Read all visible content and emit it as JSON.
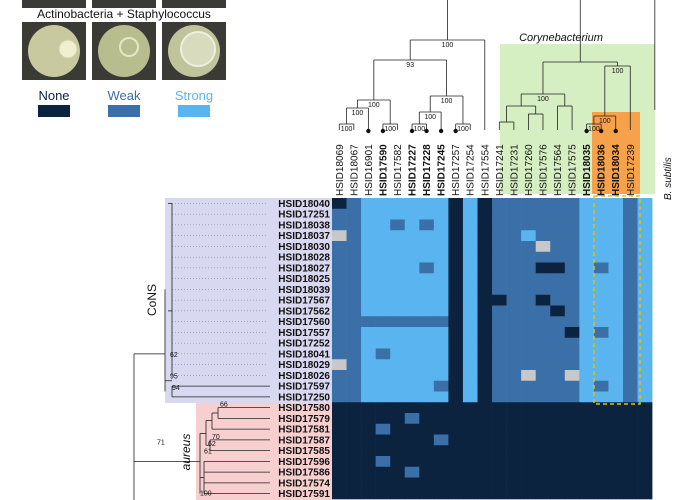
{
  "panel_title": "Actinobacteria + Staphylococcus",
  "legend": [
    {
      "label": "None",
      "color": "#0c2340"
    },
    {
      "label": "Weak",
      "color": "#3a6fa8"
    },
    {
      "label": "Strong",
      "color": "#5ab4f0"
    }
  ],
  "clade_labels": {
    "corynebacterium": "Corynebacterium",
    "cons": "CoNS",
    "aureus": "aureus",
    "bsubtilis": "B. subtilis"
  },
  "bootstrap": [
    "100",
    "93",
    "100",
    "100",
    "100",
    "100",
    "100",
    "100",
    "100",
    "100",
    "100",
    "100",
    "100",
    "100",
    "100",
    "62",
    "95",
    "94",
    "66",
    "62",
    "70",
    "62",
    "61",
    "71",
    "100"
  ],
  "chart_data": {
    "type": "heatmap",
    "value_key": {
      "0": "None",
      "1": "Weak",
      "2": "Strong",
      "3": "Not tested"
    },
    "columns": [
      "HSID18069",
      "HSID18067",
      "HSID16901",
      "HSID17590",
      "HSID17582",
      "HSID17227",
      "HSID17228",
      "HSID17245",
      "HSID17257",
      "HSID17254",
      "HSID17554",
      "HSID17241",
      "HSID17231",
      "HSID17260",
      "HSID17576",
      "HSID17564",
      "HSID17575",
      "HSID18035",
      "HSID18036",
      "HSID18034",
      "HSID17239",
      "B. subtilis"
    ],
    "bold_columns": [
      "HSID17590",
      "HSID17227",
      "HSID17228",
      "HSID17245",
      "HSID18035",
      "HSID18036",
      "HSID18034"
    ],
    "rows": [
      "HSID18040",
      "HSID17251",
      "HSID18038",
      "HSID18037",
      "HSID18030",
      "HSID18028",
      "HSID18027",
      "HSID18025",
      "HSID18039",
      "HSID17567",
      "HSID17562",
      "HSID17560",
      "HSID17557",
      "HSID17252",
      "HSID18041",
      "HSID18029",
      "HSID18026",
      "HSID17597",
      "HSID17250",
      "HSID17580",
      "HSID17579",
      "HSID17581",
      "HSID17587",
      "HSID17585",
      "HSID17596",
      "HSID17586",
      "HSID17574",
      "HSID17591"
    ],
    "values": [
      [
        0,
        1,
        2,
        2,
        2,
        2,
        2,
        2,
        0,
        2,
        0,
        1,
        1,
        1,
        1,
        1,
        1,
        2,
        2,
        2,
        1,
        2
      ],
      [
        1,
        1,
        2,
        2,
        2,
        2,
        2,
        2,
        0,
        2,
        0,
        1,
        1,
        1,
        1,
        1,
        1,
        2,
        2,
        2,
        1,
        2
      ],
      [
        1,
        1,
        2,
        2,
        1,
        2,
        1,
        2,
        0,
        2,
        0,
        1,
        1,
        1,
        1,
        1,
        1,
        2,
        2,
        2,
        1,
        2
      ],
      [
        3,
        1,
        2,
        2,
        2,
        2,
        2,
        2,
        0,
        2,
        0,
        1,
        1,
        2,
        1,
        1,
        1,
        2,
        2,
        2,
        1,
        2
      ],
      [
        1,
        1,
        2,
        2,
        2,
        2,
        2,
        2,
        0,
        2,
        0,
        1,
        1,
        1,
        3,
        1,
        1,
        2,
        2,
        2,
        1,
        2
      ],
      [
        1,
        1,
        2,
        2,
        2,
        2,
        2,
        2,
        0,
        2,
        0,
        1,
        1,
        1,
        1,
        1,
        1,
        2,
        2,
        2,
        1,
        2
      ],
      [
        1,
        1,
        2,
        2,
        2,
        2,
        1,
        2,
        0,
        2,
        0,
        1,
        1,
        1,
        0,
        0,
        1,
        2,
        1,
        2,
        1,
        2
      ],
      [
        1,
        1,
        2,
        2,
        2,
        2,
        2,
        2,
        0,
        2,
        0,
        1,
        1,
        1,
        1,
        1,
        1,
        2,
        2,
        2,
        1,
        2
      ],
      [
        1,
        1,
        2,
        2,
        2,
        2,
        2,
        2,
        0,
        2,
        0,
        1,
        1,
        1,
        1,
        1,
        1,
        2,
        2,
        2,
        1,
        2
      ],
      [
        1,
        1,
        2,
        2,
        2,
        2,
        2,
        2,
        0,
        2,
        0,
        0,
        1,
        1,
        0,
        1,
        1,
        2,
        2,
        2,
        1,
        2
      ],
      [
        1,
        1,
        2,
        2,
        2,
        2,
        2,
        2,
        0,
        2,
        0,
        1,
        1,
        1,
        1,
        0,
        1,
        2,
        2,
        2,
        1,
        2
      ],
      [
        1,
        1,
        1,
        1,
        1,
        1,
        1,
        1,
        0,
        2,
        0,
        1,
        1,
        1,
        1,
        1,
        1,
        2,
        2,
        2,
        1,
        2
      ],
      [
        1,
        1,
        2,
        2,
        2,
        2,
        2,
        2,
        0,
        2,
        0,
        1,
        1,
        1,
        1,
        1,
        0,
        2,
        1,
        2,
        1,
        2
      ],
      [
        1,
        1,
        2,
        2,
        2,
        2,
        2,
        2,
        0,
        2,
        0,
        1,
        1,
        1,
        1,
        1,
        1,
        2,
        2,
        2,
        1,
        2
      ],
      [
        1,
        1,
        2,
        1,
        2,
        2,
        2,
        2,
        0,
        2,
        0,
        1,
        1,
        1,
        1,
        1,
        1,
        2,
        2,
        2,
        1,
        2
      ],
      [
        3,
        1,
        2,
        2,
        2,
        2,
        2,
        2,
        0,
        2,
        0,
        1,
        1,
        1,
        1,
        1,
        1,
        2,
        2,
        2,
        1,
        2
      ],
      [
        1,
        1,
        2,
        2,
        2,
        2,
        2,
        2,
        0,
        2,
        0,
        1,
        1,
        3,
        1,
        1,
        3,
        2,
        2,
        2,
        1,
        2
      ],
      [
        1,
        1,
        2,
        2,
        2,
        2,
        2,
        1,
        0,
        2,
        0,
        1,
        1,
        1,
        1,
        1,
        1,
        2,
        1,
        2,
        1,
        2
      ],
      [
        1,
        1,
        2,
        2,
        2,
        2,
        2,
        2,
        0,
        2,
        0,
        1,
        1,
        1,
        1,
        1,
        1,
        2,
        2,
        2,
        1,
        2
      ],
      [
        0,
        0,
        0,
        0,
        0,
        0,
        0,
        0,
        0,
        0,
        0,
        0,
        0,
        0,
        0,
        0,
        0,
        0,
        0,
        0,
        0,
        0
      ],
      [
        0,
        0,
        0,
        0,
        0,
        1,
        0,
        0,
        0,
        0,
        0,
        0,
        0,
        0,
        0,
        0,
        0,
        0,
        0,
        0,
        0,
        0
      ],
      [
        0,
        0,
        0,
        1,
        0,
        0,
        0,
        0,
        0,
        0,
        0,
        0,
        0,
        0,
        0,
        0,
        0,
        0,
        0,
        0,
        0,
        0
      ],
      [
        0,
        0,
        0,
        0,
        0,
        0,
        0,
        1,
        0,
        0,
        0,
        0,
        0,
        0,
        0,
        0,
        0,
        0,
        0,
        0,
        0,
        0
      ],
      [
        0,
        0,
        0,
        0,
        0,
        0,
        0,
        0,
        0,
        0,
        0,
        0,
        0,
        0,
        0,
        0,
        0,
        0,
        0,
        0,
        0,
        0
      ],
      [
        0,
        0,
        0,
        1,
        0,
        0,
        0,
        0,
        0,
        0,
        0,
        0,
        0,
        0,
        0,
        0,
        0,
        0,
        0,
        0,
        0,
        0
      ],
      [
        0,
        0,
        0,
        0,
        0,
        1,
        0,
        0,
        0,
        0,
        0,
        0,
        0,
        0,
        0,
        0,
        0,
        0,
        0,
        0,
        0,
        0
      ],
      [
        0,
        0,
        0,
        0,
        0,
        0,
        0,
        0,
        0,
        0,
        0,
        0,
        0,
        0,
        0,
        0,
        0,
        0,
        0,
        0,
        0,
        0
      ],
      [
        0,
        0,
        0,
        0,
        0,
        0,
        0,
        0,
        0,
        0,
        0,
        0,
        0,
        0,
        0,
        0,
        0,
        0,
        0,
        0,
        0,
        0
      ]
    ],
    "colors": {
      "0": "#0c2340",
      "1": "#3a6fa8",
      "2": "#5ab4f0",
      "3": "#c8c8c8"
    }
  }
}
